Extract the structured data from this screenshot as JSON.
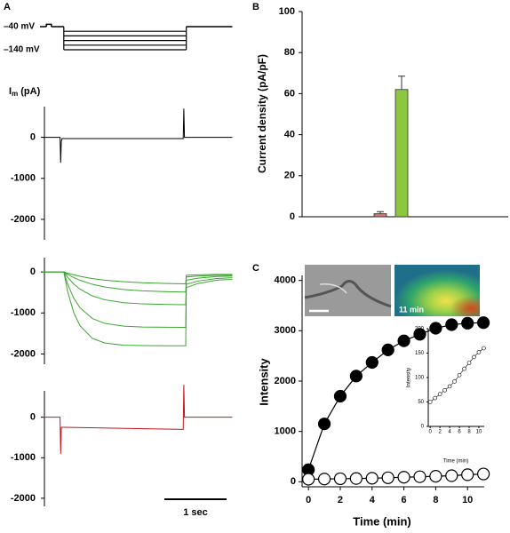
{
  "panels": [
    "A",
    "B",
    "C"
  ],
  "chart_data": [
    {
      "type": "protocol",
      "holding": -40,
      "steps": [
        -60,
        -80,
        -100,
        -120,
        -140
      ],
      "step_start": 0.34,
      "step_end": 2.31,
      "end": 3.05,
      "prepulse": [
        0.06,
        0.14,
        -30
      ],
      "ylabels": [
        {
          "value": -40,
          "label": "–40 mV"
        },
        {
          "value": -140,
          "label": "–140 mV"
        }
      ]
    },
    {
      "type": "trace",
      "ylabel": [
        "I",
        "m",
        " (pA)"
      ],
      "ylim": [
        -2500,
        750
      ],
      "yticks": [
        0,
        -1000,
        -2000
      ],
      "x": [
        0,
        0.28,
        0.29,
        0.3,
        0.31,
        2.26,
        2.27,
        2.28,
        2.29,
        3.05
      ],
      "series": [
        {
          "color": "#000000",
          "values": [
            0,
            0,
            -620,
            -100,
            -30,
            -30,
            700,
            0,
            0,
            0
          ]
        }
      ]
    },
    {
      "type": "trace",
      "ylim": [
        -2250,
        350
      ],
      "yticks": [
        0,
        -1000,
        -2000
      ],
      "x": [
        0,
        0.34,
        0.4,
        0.5,
        0.6,
        0.8,
        1.0,
        1.3,
        1.6,
        2.0,
        2.3,
        2.31,
        2.5,
        2.8,
        3.05
      ],
      "series": [
        {
          "color": "#3aa52e",
          "values": [
            0,
            0,
            -29,
            -70,
            -106,
            -161,
            -200,
            -239,
            -263,
            -281,
            -289,
            -80,
            -70,
            -60,
            -60
          ]
        },
        {
          "color": "#3aa52e",
          "values": [
            0,
            0,
            -57,
            -137,
            -203,
            -301,
            -367,
            -427,
            -460,
            -482,
            -490,
            -120,
            -100,
            -80,
            -80
          ]
        },
        {
          "color": "#3aa52e",
          "values": [
            0,
            0,
            -126,
            -294,
            -419,
            -585,
            -678,
            -749,
            -778,
            -793,
            -797,
            -200,
            -150,
            -110,
            -100
          ]
        },
        {
          "color": "#3aa52e",
          "values": [
            0,
            0,
            -288,
            -639,
            -873,
            -1135,
            -1254,
            -1322,
            -1342,
            -1349,
            -1350,
            -300,
            -220,
            -160,
            -140
          ]
        },
        {
          "color": "#3aa52e",
          "values": [
            0,
            0,
            -466,
            -992,
            -1309,
            -1620,
            -1733,
            -1786,
            -1796,
            -1800,
            -1800,
            -380,
            -280,
            -200,
            -180
          ]
        }
      ]
    },
    {
      "type": "trace",
      "ylim": [
        -2200,
        650
      ],
      "yticks": [
        0,
        -1000,
        -2000
      ],
      "x": [
        0,
        0.28,
        0.29,
        0.3,
        0.35,
        2.26,
        2.27,
        2.28,
        2.3,
        3.05
      ],
      "series": [
        {
          "color": "#c0141a",
          "values": [
            0,
            0,
            -900,
            -250,
            -250,
            -300,
            800,
            0,
            0,
            0
          ]
        }
      ],
      "scale_bar": {
        "value": 1,
        "label": "1 sec"
      }
    },
    {
      "type": "bar",
      "ylabel": "Current density (pA/pF)",
      "ylim": [
        0,
        100
      ],
      "yticks": [
        0,
        20,
        40,
        60,
        80,
        100
      ],
      "categories": [
        null,
        null
      ],
      "values": [
        1.5,
        62
      ],
      "errors": [
        1,
        6.5
      ],
      "colors": [
        "#d9706f",
        "#8dc63f"
      ]
    },
    {
      "type": "line",
      "xlabel": "Time (min)",
      "ylabel": "Intensity",
      "xlim": [
        -0.4,
        11.05
      ],
      "ylim": [
        -100,
        4100
      ],
      "xticks": [
        0,
        2,
        4,
        6,
        8,
        10
      ],
      "yticks": [
        0,
        1000,
        2000,
        3000,
        4000
      ],
      "x": [
        0,
        1,
        2,
        3,
        4,
        5,
        6,
        7,
        8,
        9,
        10,
        11
      ],
      "series": [
        {
          "marker": "filled",
          "color": "#000000",
          "values": [
            240,
            1150,
            1700,
            2100,
            2370,
            2620,
            2800,
            2930,
            3050,
            3120,
            3150,
            3160
          ]
        },
        {
          "marker": "open",
          "color": "#000000",
          "values": [
            50,
            55,
            60,
            65,
            70,
            80,
            90,
            100,
            110,
            120,
            140,
            155
          ]
        }
      ],
      "image_label": "11 min"
    },
    {
      "type": "inset",
      "xlabel": "Time (min)",
      "ylabel": "Intensity",
      "xlim": [
        -0.4,
        11.1
      ],
      "ylim": [
        0,
        200
      ],
      "xticks": [
        0,
        2,
        4,
        6,
        8,
        10
      ],
      "yticks": [
        0,
        50,
        100,
        150,
        200
      ],
      "x": [
        0,
        1,
        2,
        3,
        4,
        5,
        6,
        7,
        8,
        9,
        10,
        11
      ],
      "series": [
        {
          "marker": "open",
          "color": "#000000",
          "values": [
            50,
            58,
            66,
            74,
            82,
            92,
            105,
            118,
            130,
            142,
            152,
            160
          ]
        }
      ]
    }
  ]
}
